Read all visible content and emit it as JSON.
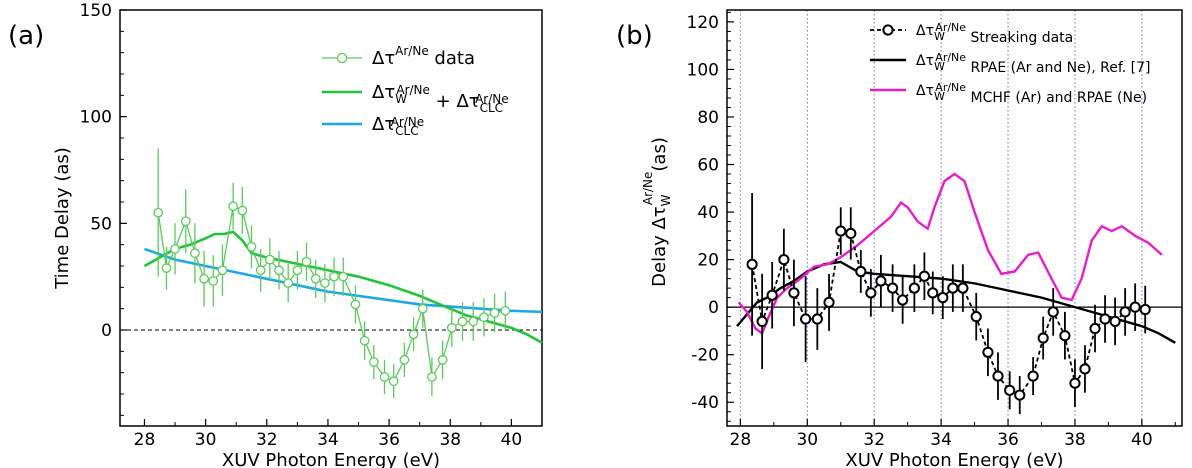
{
  "chart_data": [
    {
      "panel_label": "(a)",
      "type": "line",
      "xlabel": "XUV Photon Energy (eV)",
      "ylabel": "Time Delay (as)",
      "xlim": [
        27.2,
        41
      ],
      "ylim": [
        -45,
        150
      ],
      "xticks": [
        28,
        30,
        32,
        34,
        36,
        38,
        40
      ],
      "yticks": [
        0,
        50,
        100,
        150
      ],
      "zero_line": "dashed",
      "grid": false,
      "legend_position": "top-right",
      "series": [
        {
          "name": "Δτ data",
          "legend_main": "Δτ",
          "legend_sup": "Ar/Ne",
          "legend_tail": "data",
          "style": "line-markers-errorbars",
          "color": "#5cc85c",
          "points": [
            {
              "x": 28.45,
              "y": 55,
              "err": 30
            },
            {
              "x": 28.72,
              "y": 29,
              "err": 10
            },
            {
              "x": 29.0,
              "y": 38,
              "err": 12
            },
            {
              "x": 29.35,
              "y": 51,
              "err": 15
            },
            {
              "x": 29.65,
              "y": 36,
              "err": 14
            },
            {
              "x": 29.95,
              "y": 24,
              "err": 13
            },
            {
              "x": 30.25,
              "y": 23,
              "err": 12
            },
            {
              "x": 30.55,
              "y": 28,
              "err": 12
            },
            {
              "x": 30.9,
              "y": 58,
              "err": 11
            },
            {
              "x": 31.2,
              "y": 56,
              "err": 11
            },
            {
              "x": 31.5,
              "y": 39,
              "err": 10
            },
            {
              "x": 31.8,
              "y": 28,
              "err": 10
            },
            {
              "x": 32.1,
              "y": 33,
              "err": 10
            },
            {
              "x": 32.4,
              "y": 28,
              "err": 9
            },
            {
              "x": 32.7,
              "y": 22,
              "err": 9
            },
            {
              "x": 33.0,
              "y": 28,
              "err": 9
            },
            {
              "x": 33.3,
              "y": 32,
              "err": 9
            },
            {
              "x": 33.6,
              "y": 24,
              "err": 9
            },
            {
              "x": 33.9,
              "y": 22,
              "err": 9
            },
            {
              "x": 34.2,
              "y": 25,
              "err": 9
            },
            {
              "x": 34.5,
              "y": 25,
              "err": 9
            },
            {
              "x": 34.9,
              "y": 12,
              "err": 9
            },
            {
              "x": 35.2,
              "y": -5,
              "err": 9
            },
            {
              "x": 35.5,
              "y": -15,
              "err": 8
            },
            {
              "x": 35.85,
              "y": -22,
              "err": 8
            },
            {
              "x": 36.15,
              "y": -24,
              "err": 8
            },
            {
              "x": 36.5,
              "y": -14,
              "err": 8
            },
            {
              "x": 36.8,
              "y": -2,
              "err": 8
            },
            {
              "x": 37.1,
              "y": 10,
              "err": 9
            },
            {
              "x": 37.4,
              "y": -22,
              "err": 9
            },
            {
              "x": 37.75,
              "y": -14,
              "err": 9
            },
            {
              "x": 38.05,
              "y": 1,
              "err": 9
            },
            {
              "x": 38.4,
              "y": 4,
              "err": 9
            },
            {
              "x": 38.75,
              "y": 4,
              "err": 9
            },
            {
              "x": 39.1,
              "y": 6,
              "err": 9
            },
            {
              "x": 39.45,
              "y": 8,
              "err": 9
            },
            {
              "x": 39.8,
              "y": 9,
              "err": 9
            }
          ]
        },
        {
          "name": "Δτ_W + Δτ_CLC",
          "legend_main": "Δτ",
          "legend_sub": "W",
          "legend_sup": "Ar/Ne",
          "legend_plus": "+",
          "legend_main2": "Δτ",
          "legend_sub2": "CLC",
          "legend_sup2": "Ar/Ne",
          "style": "line",
          "color": "#22c33a",
          "points": [
            {
              "x": 28.0,
              "y": 30
            },
            {
              "x": 28.5,
              "y": 34
            },
            {
              "x": 29.0,
              "y": 38
            },
            {
              "x": 29.5,
              "y": 40
            },
            {
              "x": 30.0,
              "y": 43
            },
            {
              "x": 30.3,
              "y": 45
            },
            {
              "x": 30.6,
              "y": 45
            },
            {
              "x": 30.9,
              "y": 46
            },
            {
              "x": 31.2,
              "y": 42
            },
            {
              "x": 31.5,
              "y": 36
            },
            {
              "x": 32.0,
              "y": 34
            },
            {
              "x": 33.0,
              "y": 31
            },
            {
              "x": 34.0,
              "y": 28
            },
            {
              "x": 35.0,
              "y": 25
            },
            {
              "x": 36.0,
              "y": 21
            },
            {
              "x": 37.0,
              "y": 16
            },
            {
              "x": 37.5,
              "y": 13
            },
            {
              "x": 38.0,
              "y": 10
            },
            {
              "x": 38.5,
              "y": 7
            },
            {
              "x": 39.0,
              "y": 5
            },
            {
              "x": 39.5,
              "y": 3
            },
            {
              "x": 40.0,
              "y": 1
            },
            {
              "x": 40.5,
              "y": -2
            },
            {
              "x": 41.0,
              "y": -6
            }
          ]
        },
        {
          "name": "Δτ_CLC",
          "legend_main": "Δτ",
          "legend_sub": "CLC",
          "legend_sup": "Ar/Ne",
          "style": "line",
          "color": "#1ea7e8",
          "points": [
            {
              "x": 28.0,
              "y": 38
            },
            {
              "x": 29.0,
              "y": 33
            },
            {
              "x": 30.0,
              "y": 30
            },
            {
              "x": 31.0,
              "y": 27
            },
            {
              "x": 32.0,
              "y": 24
            },
            {
              "x": 33.0,
              "y": 21
            },
            {
              "x": 34.0,
              "y": 18
            },
            {
              "x": 35.0,
              "y": 16
            },
            {
              "x": 36.0,
              "y": 14
            },
            {
              "x": 37.0,
              "y": 12
            },
            {
              "x": 38.0,
              "y": 11
            },
            {
              "x": 39.0,
              "y": 10
            },
            {
              "x": 40.0,
              "y": 9
            },
            {
              "x": 41.0,
              "y": 8.5
            }
          ]
        }
      ]
    },
    {
      "panel_label": "(b)",
      "type": "line",
      "xlabel": "XUV Photon Energy (eV)",
      "ylabel_main": "Delay Δτ",
      "ylabel_sub": "W",
      "ylabel_sup": "Ar/Ne",
      "ylabel_tail": "(as)",
      "xlim": [
        27.6,
        41.2
      ],
      "ylim": [
        -50,
        125
      ],
      "xticks": [
        28,
        30,
        32,
        34,
        36,
        38,
        40
      ],
      "yticks": [
        -40,
        -20,
        0,
        20,
        40,
        60,
        80,
        100,
        120
      ],
      "zero_line": "solid",
      "grid": "vertical dotted lines at x ticks",
      "legend_position": "top-right",
      "series": [
        {
          "name": "Streaking data",
          "legend_main": "Δτ",
          "legend_sub": "W",
          "legend_sup": "Ar/Ne",
          "legend_tail": "Streaking data",
          "style": "dashed-line-markers-errorbars",
          "color": "#000000",
          "points": [
            {
              "x": 28.35,
              "y": 18,
              "err": 30
            },
            {
              "x": 28.65,
              "y": -6,
              "err": 20
            },
            {
              "x": 28.95,
              "y": 5,
              "err": 14
            },
            {
              "x": 29.3,
              "y": 20,
              "err": 13
            },
            {
              "x": 29.6,
              "y": 6,
              "err": 14
            },
            {
              "x": 29.95,
              "y": -5,
              "err": 18
            },
            {
              "x": 30.3,
              "y": -5,
              "err": 13
            },
            {
              "x": 30.65,
              "y": 2,
              "err": 12
            },
            {
              "x": 31.0,
              "y": 32,
              "err": 10
            },
            {
              "x": 31.3,
              "y": 31,
              "err": 11
            },
            {
              "x": 31.6,
              "y": 15,
              "err": 9
            },
            {
              "x": 31.9,
              "y": 6,
              "err": 10
            },
            {
              "x": 32.2,
              "y": 11,
              "err": 11
            },
            {
              "x": 32.55,
              "y": 8,
              "err": 10
            },
            {
              "x": 32.85,
              "y": 3,
              "err": 10
            },
            {
              "x": 33.2,
              "y": 8,
              "err": 10
            },
            {
              "x": 33.5,
              "y": 13,
              "err": 10
            },
            {
              "x": 33.75,
              "y": 6,
              "err": 9
            },
            {
              "x": 34.05,
              "y": 4,
              "err": 9
            },
            {
              "x": 34.35,
              "y": 8,
              "err": 10
            },
            {
              "x": 34.65,
              "y": 8,
              "err": 10
            },
            {
              "x": 35.05,
              "y": -4,
              "err": 10
            },
            {
              "x": 35.4,
              "y": -19,
              "err": 10
            },
            {
              "x": 35.7,
              "y": -29,
              "err": 10
            },
            {
              "x": 36.05,
              "y": -35,
              "err": 8
            },
            {
              "x": 36.35,
              "y": -37,
              "err": 8
            },
            {
              "x": 36.75,
              "y": -29,
              "err": 8
            },
            {
              "x": 37.05,
              "y": -13,
              "err": 9
            },
            {
              "x": 37.35,
              "y": -2,
              "err": 10
            },
            {
              "x": 37.7,
              "y": -12,
              "err": 10
            },
            {
              "x": 38.0,
              "y": -32,
              "err": 10
            },
            {
              "x": 38.3,
              "y": -26,
              "err": 10
            },
            {
              "x": 38.6,
              "y": -9,
              "err": 10
            },
            {
              "x": 38.9,
              "y": -5,
              "err": 10
            },
            {
              "x": 39.2,
              "y": -6,
              "err": 10
            },
            {
              "x": 39.5,
              "y": -2,
              "err": 10
            },
            {
              "x": 39.8,
              "y": 0,
              "err": 10
            },
            {
              "x": 40.1,
              "y": -1,
              "err": 10
            }
          ]
        },
        {
          "name": "RPAE (Ar and Ne), Ref. [7]",
          "legend_main": "Δτ",
          "legend_sub": "W",
          "legend_sup": "Ar/Ne",
          "legend_tail": "RPAE (Ar and Ne), Ref. [7]",
          "style": "line",
          "color": "#000000",
          "points": [
            {
              "x": 27.9,
              "y": -8
            },
            {
              "x": 28.2,
              "y": -3
            },
            {
              "x": 28.5,
              "y": 2
            },
            {
              "x": 28.8,
              "y": 4
            },
            {
              "x": 29.2,
              "y": 8
            },
            {
              "x": 29.6,
              "y": 11
            },
            {
              "x": 30.0,
              "y": 15
            },
            {
              "x": 30.5,
              "y": 18
            },
            {
              "x": 31.0,
              "y": 19
            },
            {
              "x": 31.5,
              "y": 15
            },
            {
              "x": 32.0,
              "y": 14
            },
            {
              "x": 33.0,
              "y": 13
            },
            {
              "x": 34.0,
              "y": 12
            },
            {
              "x": 35.0,
              "y": 10
            },
            {
              "x": 36.0,
              "y": 7
            },
            {
              "x": 37.0,
              "y": 4
            },
            {
              "x": 38.0,
              "y": 0
            },
            {
              "x": 39.0,
              "y": -4
            },
            {
              "x": 40.0,
              "y": -8
            },
            {
              "x": 40.5,
              "y": -11
            },
            {
              "x": 41.0,
              "y": -15
            }
          ]
        },
        {
          "name": "MCHF (Ar) and RPAE (Ne)",
          "legend_main": "Δτ",
          "legend_sub": "W",
          "legend_sup": "Ar/Ne",
          "legend_tail": "MCHF (Ar) and RPAE (Ne)",
          "style": "line",
          "color": "#e61ec8",
          "points": [
            {
              "x": 27.95,
              "y": 2
            },
            {
              "x": 28.2,
              "y": -2
            },
            {
              "x": 28.45,
              "y": -9
            },
            {
              "x": 28.65,
              "y": -11
            },
            {
              "x": 28.85,
              "y": -4
            },
            {
              "x": 29.1,
              "y": 4
            },
            {
              "x": 29.4,
              "y": 8
            },
            {
              "x": 29.8,
              "y": 12
            },
            {
              "x": 30.2,
              "y": 17
            },
            {
              "x": 30.6,
              "y": 18
            },
            {
              "x": 31.0,
              "y": 21
            },
            {
              "x": 31.5,
              "y": 26
            },
            {
              "x": 32.0,
              "y": 32
            },
            {
              "x": 32.5,
              "y": 38
            },
            {
              "x": 32.8,
              "y": 44
            },
            {
              "x": 33.0,
              "y": 42
            },
            {
              "x": 33.3,
              "y": 36
            },
            {
              "x": 33.6,
              "y": 33
            },
            {
              "x": 33.8,
              "y": 42
            },
            {
              "x": 34.1,
              "y": 53
            },
            {
              "x": 34.4,
              "y": 56
            },
            {
              "x": 34.7,
              "y": 53
            },
            {
              "x": 35.0,
              "y": 40
            },
            {
              "x": 35.4,
              "y": 24
            },
            {
              "x": 35.8,
              "y": 14
            },
            {
              "x": 36.2,
              "y": 15
            },
            {
              "x": 36.6,
              "y": 22
            },
            {
              "x": 36.9,
              "y": 23
            },
            {
              "x": 37.3,
              "y": 12
            },
            {
              "x": 37.6,
              "y": 4
            },
            {
              "x": 37.9,
              "y": 3
            },
            {
              "x": 38.2,
              "y": 12
            },
            {
              "x": 38.5,
              "y": 28
            },
            {
              "x": 38.8,
              "y": 34
            },
            {
              "x": 39.1,
              "y": 32
            },
            {
              "x": 39.4,
              "y": 34
            },
            {
              "x": 39.8,
              "y": 30
            },
            {
              "x": 40.2,
              "y": 27
            },
            {
              "x": 40.6,
              "y": 22
            }
          ]
        }
      ]
    }
  ]
}
